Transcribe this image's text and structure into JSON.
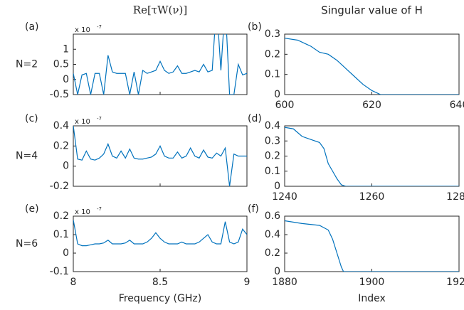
{
  "chart_data": [
    {
      "type": "line",
      "title": "Re[τW(ν)]",
      "panel": "(a)",
      "row_label": "N=2",
      "exponent": "x 10",
      "exponent_power": "-7",
      "x": [
        8,
        8.025,
        8.05,
        8.075,
        8.1,
        8.125,
        8.15,
        8.175,
        8.2,
        8.225,
        8.25,
        8.275,
        8.3,
        8.325,
        8.35,
        8.375,
        8.4,
        8.425,
        8.45,
        8.475,
        8.5,
        8.525,
        8.55,
        8.575,
        8.6,
        8.625,
        8.65,
        8.675,
        8.7,
        8.725,
        8.75,
        8.775,
        8.8,
        8.825,
        8.85,
        8.875,
        8.9,
        8.925,
        8.95,
        8.975,
        9
      ],
      "values": [
        0.2,
        -0.5,
        0.15,
        0.2,
        -0.5,
        0.2,
        0.2,
        -0.5,
        0.8,
        0.25,
        0.2,
        0.2,
        0.2,
        -0.5,
        0.25,
        -0.5,
        0.3,
        0.2,
        0.25,
        0.3,
        0.6,
        0.3,
        0.2,
        0.25,
        0.45,
        0.2,
        0.2,
        0.25,
        0.3,
        0.25,
        0.5,
        0.25,
        0.3,
        2.5,
        0.3,
        2.5,
        -0.5,
        -0.5,
        0.5,
        0.15,
        0.2
      ],
      "color": "#0072bd",
      "xlim": [
        8,
        9
      ],
      "xticks": [
        8,
        8.5,
        9
      ],
      "show_xtick_labels": false,
      "ylim": [
        -0.5,
        1.5
      ],
      "yticks": [
        -0.5,
        0,
        0.5,
        1
      ]
    },
    {
      "type": "line",
      "title": "Singular value of H",
      "panel": "(b)",
      "x": [
        600,
        603,
        605,
        606,
        608,
        610,
        612,
        614,
        616,
        618,
        620,
        621,
        622,
        640
      ],
      "values": [
        0.28,
        0.27,
        0.25,
        0.24,
        0.21,
        0.2,
        0.17,
        0.13,
        0.09,
        0.05,
        0.02,
        0.01,
        0,
        0
      ],
      "color": "#0072bd",
      "xlim": [
        600,
        640
      ],
      "xticks": [
        600,
        620,
        640
      ],
      "show_xtick_labels": true,
      "ylim": [
        0,
        0.3
      ],
      "yticks": [
        0,
        0.1,
        0.2,
        0.3
      ]
    },
    {
      "type": "line",
      "panel": "(c)",
      "row_label": "N=4",
      "exponent": "x 10",
      "exponent_power": "-7",
      "x": [
        8,
        8.025,
        8.05,
        8.075,
        8.1,
        8.125,
        8.15,
        8.175,
        8.2,
        8.225,
        8.25,
        8.275,
        8.3,
        8.325,
        8.35,
        8.375,
        8.4,
        8.425,
        8.45,
        8.475,
        8.5,
        8.525,
        8.55,
        8.575,
        8.6,
        8.625,
        8.65,
        8.675,
        8.7,
        8.725,
        8.75,
        8.775,
        8.8,
        8.825,
        8.85,
        8.875,
        8.9,
        8.925,
        8.95,
        8.975,
        9
      ],
      "values": [
        0.4,
        0.07,
        0.06,
        0.15,
        0.07,
        0.06,
        0.08,
        0.12,
        0.22,
        0.1,
        0.08,
        0.15,
        0.08,
        0.17,
        0.08,
        0.07,
        0.07,
        0.08,
        0.09,
        0.12,
        0.2,
        0.1,
        0.08,
        0.08,
        0.14,
        0.08,
        0.1,
        0.18,
        0.1,
        0.08,
        0.16,
        0.09,
        0.08,
        0.13,
        0.1,
        0.18,
        -0.2,
        0.12,
        0.1,
        0.1,
        0.1
      ],
      "color": "#0072bd",
      "xlim": [
        8,
        9
      ],
      "xticks": [
        8,
        8.5,
        9
      ],
      "show_xtick_labels": false,
      "ylim": [
        -0.2,
        0.4
      ],
      "yticks": [
        -0.2,
        0,
        0.2,
        0.4
      ]
    },
    {
      "type": "line",
      "panel": "(d)",
      "x": [
        1240,
        1242,
        1244,
        1246,
        1248,
        1249,
        1250,
        1251,
        1252,
        1253,
        1254,
        1280
      ],
      "values": [
        0.39,
        0.38,
        0.33,
        0.31,
        0.29,
        0.25,
        0.15,
        0.1,
        0.05,
        0.01,
        0,
        0
      ],
      "color": "#0072bd",
      "xlim": [
        1240,
        1280
      ],
      "xticks": [
        1240,
        1260,
        1280
      ],
      "show_xtick_labels": true,
      "ylim": [
        0,
        0.4
      ],
      "yticks": [
        0,
        0.1,
        0.2,
        0.3,
        0.4
      ]
    },
    {
      "type": "line",
      "panel": "(e)",
      "row_label": "N=6",
      "exponent": "x 10",
      "exponent_power": "-7",
      "xlabel": "Frequency (GHz)",
      "x": [
        8,
        8.025,
        8.05,
        8.075,
        8.1,
        8.125,
        8.15,
        8.175,
        8.2,
        8.225,
        8.25,
        8.275,
        8.3,
        8.325,
        8.35,
        8.375,
        8.4,
        8.425,
        8.45,
        8.475,
        8.5,
        8.525,
        8.55,
        8.575,
        8.6,
        8.625,
        8.65,
        8.675,
        8.7,
        8.725,
        8.75,
        8.775,
        8.8,
        8.825,
        8.85,
        8.875,
        8.9,
        8.925,
        8.95,
        8.975,
        9
      ],
      "values": [
        0.18,
        0.05,
        0.04,
        0.04,
        0.045,
        0.05,
        0.05,
        0.055,
        0.07,
        0.05,
        0.05,
        0.05,
        0.055,
        0.07,
        0.05,
        0.05,
        0.05,
        0.06,
        0.08,
        0.11,
        0.08,
        0.06,
        0.05,
        0.05,
        0.05,
        0.06,
        0.05,
        0.05,
        0.05,
        0.06,
        0.08,
        0.1,
        0.06,
        0.05,
        0.05,
        0.17,
        0.06,
        0.05,
        0.06,
        0.13,
        0.1
      ],
      "color": "#0072bd",
      "xlim": [
        8,
        9
      ],
      "xticks": [
        8,
        8.5,
        9
      ],
      "show_xtick_labels": true,
      "ylim": [
        -0.1,
        0.2
      ],
      "yticks": [
        -0.1,
        0,
        0.1,
        0.2
      ]
    },
    {
      "type": "line",
      "panel": "(f)",
      "xlabel": "Index",
      "x": [
        1880,
        1884,
        1888,
        1890,
        1891,
        1892,
        1893,
        1893.5,
        1920
      ],
      "values": [
        0.55,
        0.52,
        0.5,
        0.45,
        0.35,
        0.2,
        0.05,
        0,
        0
      ],
      "color": "#0072bd",
      "xlim": [
        1880,
        1920
      ],
      "xticks": [
        1880,
        1900,
        1920
      ],
      "show_xtick_labels": true,
      "ylim": [
        0,
        0.6
      ],
      "yticks": [
        0,
        0.2,
        0.4,
        0.6
      ]
    }
  ]
}
